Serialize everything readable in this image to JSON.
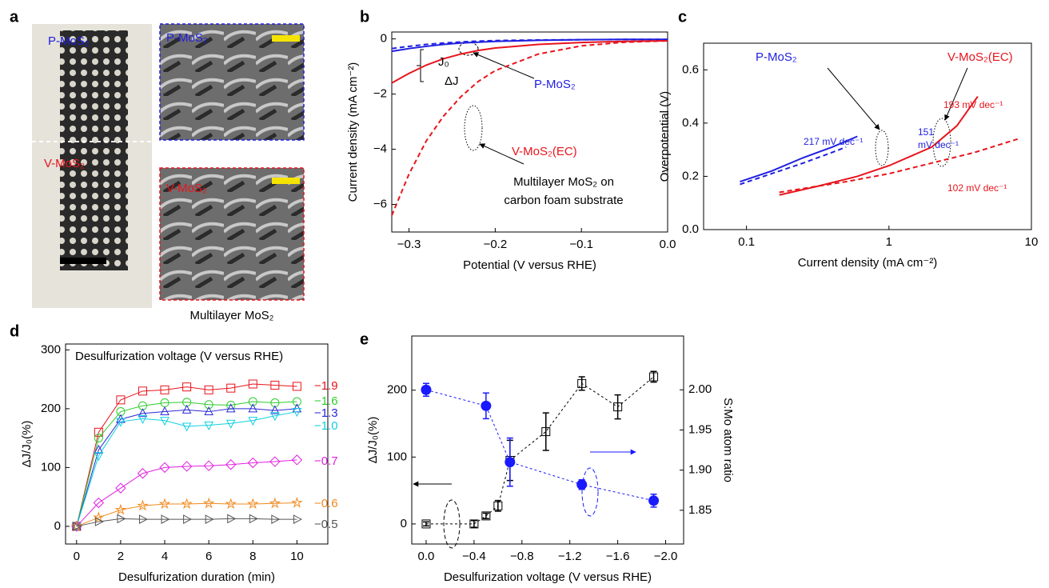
{
  "image_panel": {
    "panel": "a",
    "labels": [
      "P-MoS₂",
      "V-MoS₂",
      "P-MoS₂",
      "V-MoS₂"
    ],
    "caption": "Multilayer MoS₂"
  },
  "chart_data": [
    {
      "panel": "b",
      "type": "line",
      "xlabel": "Potential (V versus RHE)",
      "ylabel": "Current density (mA cm⁻²)",
      "xlim": [
        -0.32,
        0
      ],
      "ylim": [
        -7,
        0.25
      ],
      "xticks": [
        {
          "value": -0.3,
          "label": "−0.3"
        },
        {
          "value": -0.2,
          "label": "−0.2"
        },
        {
          "value": -0.1,
          "label": "−0.1"
        },
        {
          "value": 0,
          "label": "0.0"
        }
      ],
      "yticks": [
        {
          "value": -6,
          "label": "−6"
        },
        {
          "value": -4,
          "label": "−4"
        },
        {
          "value": -2,
          "label": "−2"
        },
        0
      ],
      "series": [
        {
          "name": "P-MoS₂",
          "color": "#1f1fe0",
          "style": "solid",
          "x": [
            -0.32,
            -0.3,
            -0.28,
            -0.26,
            -0.24,
            -0.22,
            -0.2,
            -0.15,
            -0.1,
            -0.05,
            0
          ],
          "values": [
            -0.45,
            -0.35,
            -0.27,
            -0.2,
            -0.15,
            -0.12,
            -0.09,
            -0.05,
            -0.03,
            -0.02,
            -0.02
          ]
        },
        {
          "color": "#1f1fe0",
          "style": "dashed",
          "x": [
            -0.32,
            -0.3,
            -0.28,
            -0.26,
            -0.24,
            -0.22,
            -0.2,
            -0.15,
            -0.1,
            -0.05,
            0
          ],
          "values": [
            -0.35,
            -0.27,
            -0.2,
            -0.15,
            -0.11,
            -0.08,
            -0.06,
            -0.04,
            -0.03,
            -0.02,
            -0.02
          ]
        },
        {
          "name": "V-MoS₂(EC)",
          "color": "#e8141c",
          "style": "solid",
          "x": [
            -0.32,
            -0.3,
            -0.28,
            -0.26,
            -0.24,
            -0.22,
            -0.2,
            -0.15,
            -0.1,
            -0.05,
            0
          ],
          "values": [
            -1.6,
            -1.25,
            -0.95,
            -0.72,
            -0.55,
            -0.42,
            -0.33,
            -0.2,
            -0.13,
            -0.09,
            -0.07
          ]
        },
        {
          "color": "#e8141c",
          "style": "dashed",
          "x": [
            -0.32,
            -0.3,
            -0.28,
            -0.26,
            -0.24,
            -0.22,
            -0.2,
            -0.15,
            -0.1,
            -0.05,
            0
          ],
          "values": [
            -6.4,
            -4.9,
            -3.7,
            -2.8,
            -2.1,
            -1.55,
            -1.15,
            -0.55,
            -0.25,
            -0.12,
            -0.07
          ]
        }
      ],
      "annotations": [
        {
          "text": "J₀",
          "color": "#000000"
        },
        {
          "text": "ΔJ",
          "color": "#000000"
        },
        {
          "text": "Multilayer MoS₂ on",
          "color": "#000000"
        },
        {
          "text": "carbon foam substrate",
          "color": "#000000"
        }
      ]
    },
    {
      "panel": "c",
      "type": "line",
      "xlabel": "Current density (mA cm⁻²)",
      "ylabel": "Overpotential (V)",
      "xscale": "log",
      "xlim": [
        0.05,
        10
      ],
      "ylim": [
        0,
        0.7
      ],
      "xticks": [
        0.1,
        1,
        10
      ],
      "yticks": [
        {
          "value": 0,
          "label": "0.0"
        },
        0.2,
        0.4,
        0.6
      ],
      "series": [
        {
          "name": "P-MoS₂",
          "color": "#1f1fe0",
          "style": "solid",
          "x": [
            0.09,
            0.15,
            0.25,
            0.4,
            0.6
          ],
          "values": [
            0.18,
            0.22,
            0.27,
            0.31,
            0.35
          ]
        },
        {
          "color": "#1f1fe0",
          "style": "dashed",
          "x": [
            0.09,
            0.15,
            0.25,
            0.4,
            0.5
          ],
          "values": [
            0.17,
            0.21,
            0.25,
            0.29,
            0.31
          ]
        },
        {
          "name": "V-MoS₂(EC)",
          "color": "#e8141c",
          "style": "solid",
          "x": [
            0.17,
            0.3,
            0.6,
            1,
            2,
            3,
            4.2
          ],
          "values": [
            0.13,
            0.16,
            0.2,
            0.24,
            0.31,
            0.39,
            0.5
          ]
        },
        {
          "color": "#e8141c",
          "style": "dashed",
          "x": [
            0.17,
            0.5,
            1,
            2,
            4,
            8
          ],
          "values": [
            0.14,
            0.18,
            0.21,
            0.25,
            0.29,
            0.34
          ]
        }
      ],
      "annotations": [
        {
          "text": "217 mV dec⁻¹",
          "color": "#1f1fe0"
        },
        {
          "text": "151",
          "color": "#1f1fe0"
        },
        {
          "text": "mV dec⁻¹",
          "color": "#1f1fe0"
        },
        {
          "text": "193 mV dec⁻¹",
          "color": "#e8141c"
        },
        {
          "text": "102 mV dec⁻¹",
          "color": "#e8141c"
        }
      ]
    },
    {
      "panel": "d",
      "type": "line",
      "title": "Desulfurization voltage (V versus RHE)",
      "xlabel": "Desulfurization duration (min)",
      "ylabel": "ΔJ/J₀(%)",
      "xlim": [
        -0.5,
        11.4
      ],
      "ylim": [
        -30,
        310
      ],
      "xticks": [
        0,
        2,
        4,
        6,
        8,
        10
      ],
      "yticks": [
        0,
        100,
        200,
        300
      ],
      "x": [
        0,
        1,
        2,
        3,
        4,
        5,
        6,
        7,
        8,
        9,
        10
      ],
      "series": [
        {
          "name": "−1.9",
          "color": "#e8141c",
          "marker": "square",
          "values": [
            0,
            160,
            215,
            230,
            232,
            237,
            232,
            235,
            242,
            240,
            238
          ]
        },
        {
          "name": "−1.6",
          "color": "#2ecc2e",
          "marker": "circle",
          "values": [
            0,
            150,
            195,
            205,
            210,
            211,
            207,
            206,
            212,
            210,
            212
          ]
        },
        {
          "name": "−1.3",
          "color": "#2a2ad8",
          "marker": "triangle-up",
          "values": [
            0,
            130,
            182,
            192,
            195,
            198,
            195,
            200,
            200,
            197,
            200
          ]
        },
        {
          "name": "−1.0",
          "color": "#10d0e0",
          "marker": "triangle-down",
          "values": [
            0,
            120,
            178,
            183,
            180,
            170,
            172,
            175,
            180,
            188,
            195
          ]
        },
        {
          "name": "−0.7",
          "color": "#e020e0",
          "marker": "diamond",
          "values": [
            0,
            40,
            65,
            90,
            100,
            102,
            103,
            105,
            108,
            110,
            113
          ]
        },
        {
          "name": "−0.6",
          "color": "#f08a20",
          "marker": "star",
          "values": [
            0,
            15,
            28,
            35,
            38,
            38,
            39,
            38,
            38,
            39,
            40
          ]
        },
        {
          "name": "−0.5",
          "color": "#555555",
          "marker": "triangle-right",
          "values": [
            0,
            8,
            13,
            12,
            12,
            12,
            12,
            13,
            13,
            12,
            12
          ]
        }
      ]
    },
    {
      "panel": "e",
      "type": "line",
      "xlabel": "Desulfurization voltage (V versus RHE)",
      "ylabel": "ΔJ/J₀(%)",
      "y2label": "S:Mo atom ratio",
      "xlim": [
        0.12,
        -2.15
      ],
      "ylim": [
        -30,
        281
      ],
      "y2lim": [
        1.808,
        2.067
      ],
      "xticks": [
        {
          "value": 0,
          "label": "0.0"
        },
        {
          "value": -0.4,
          "label": "−0.4"
        },
        {
          "value": -0.8,
          "label": "−0.8"
        },
        {
          "value": -1.2,
          "label": "−1.2"
        },
        {
          "value": -1.6,
          "label": "−1.6"
        },
        {
          "value": -2,
          "label": "−2.0"
        }
      ],
      "yticks": [
        0,
        100,
        200
      ],
      "y2ticks": [
        1.85,
        {
          "value": 1.9,
          "label": "1.90"
        },
        1.95,
        {
          "value": 2,
          "label": "2.00"
        }
      ],
      "series": [
        {
          "color": "#000000",
          "style": "dashed",
          "marker": "square",
          "x": [
            0,
            -0.4,
            -0.5,
            -0.6,
            -0.7,
            -1.0,
            -1.3,
            -1.6,
            -1.9
          ],
          "values": [
            0,
            0,
            12,
            27,
            95,
            138,
            210,
            175,
            220
          ],
          "errors": [
            3,
            5,
            4,
            8,
            30,
            28,
            10,
            18,
            8
          ]
        },
        {
          "color": "#1a1aff",
          "style": "dashed",
          "marker": "circle",
          "filled": true,
          "axis": "y2",
          "x": [
            0,
            -0.5,
            -0.7,
            -1.3,
            -1.9
          ],
          "values": [
            2.0,
            1.98,
            1.91,
            1.882,
            1.862
          ],
          "errors": [
            0.008,
            0.016,
            0.03,
            0.006,
            0.008
          ]
        }
      ]
    }
  ]
}
